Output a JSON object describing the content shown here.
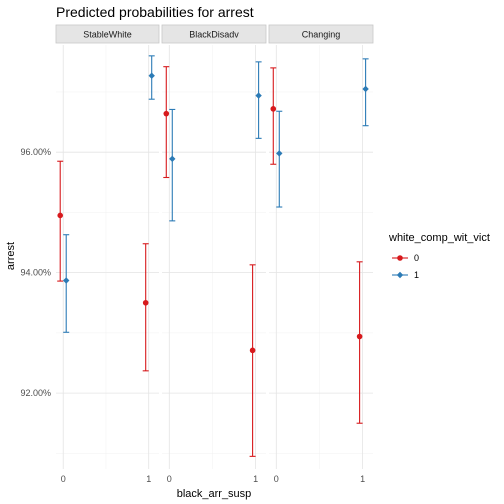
{
  "chart_data": {
    "type": "scatter",
    "title": "Predicted probabilities for arrest",
    "xlabel": "black_arr_susp",
    "ylabel": "arrest",
    "x_ticks": [
      "0",
      "1"
    ],
    "y_ticks": [
      "92.00%",
      "94.00%",
      "96.00%"
    ],
    "y_tick_values": [
      0.92,
      0.94,
      0.96
    ],
    "ylim": [
      0.9074,
      0.9778
    ],
    "grid": true,
    "legend_placement": "right",
    "legend_title": "white_comp_wit_vict",
    "colors": {
      "0": "#d7191c",
      "1": "#2c7bb6"
    },
    "series": [
      {
        "name": "0",
        "color": "#d7191c",
        "marker": "circle"
      },
      {
        "name": "1",
        "color": "#2c7bb6",
        "marker": "diamond"
      }
    ],
    "facets": [
      {
        "label": "StableWhite",
        "points": [
          {
            "series": "0",
            "x": 0,
            "y": 0.9495,
            "lower": 0.9386,
            "upper": 0.9585
          },
          {
            "series": "1",
            "x": 0,
            "y": 0.9387,
            "lower": 0.9301,
            "upper": 0.9463
          },
          {
            "series": "0",
            "x": 1,
            "y": 0.935,
            "lower": 0.9237,
            "upper": 0.9448
          },
          {
            "series": "1",
            "x": 1,
            "y": 0.9727,
            "lower": 0.9688,
            "upper": 0.976
          }
        ]
      },
      {
        "label": "BlackDisadv",
        "points": [
          {
            "series": "0",
            "x": 0,
            "y": 0.9664,
            "lower": 0.9558,
            "upper": 0.9742
          },
          {
            "series": "1",
            "x": 0,
            "y": 0.9589,
            "lower": 0.9486,
            "upper": 0.9671
          },
          {
            "series": "0",
            "x": 1,
            "y": 0.9271,
            "lower": 0.9095,
            "upper": 0.9413
          },
          {
            "series": "1",
            "x": 1,
            "y": 0.9694,
            "lower": 0.9623,
            "upper": 0.975
          }
        ]
      },
      {
        "label": "Changing",
        "points": [
          {
            "series": "0",
            "x": 0,
            "y": 0.9672,
            "lower": 0.958,
            "upper": 0.974
          },
          {
            "series": "1",
            "x": 0,
            "y": 0.9598,
            "lower": 0.9509,
            "upper": 0.9668
          },
          {
            "series": "0",
            "x": 1,
            "y": 0.9294,
            "lower": 0.915,
            "upper": 0.9418
          },
          {
            "series": "1",
            "x": 1,
            "y": 0.9705,
            "lower": 0.9644,
            "upper": 0.9755
          }
        ]
      }
    ]
  }
}
